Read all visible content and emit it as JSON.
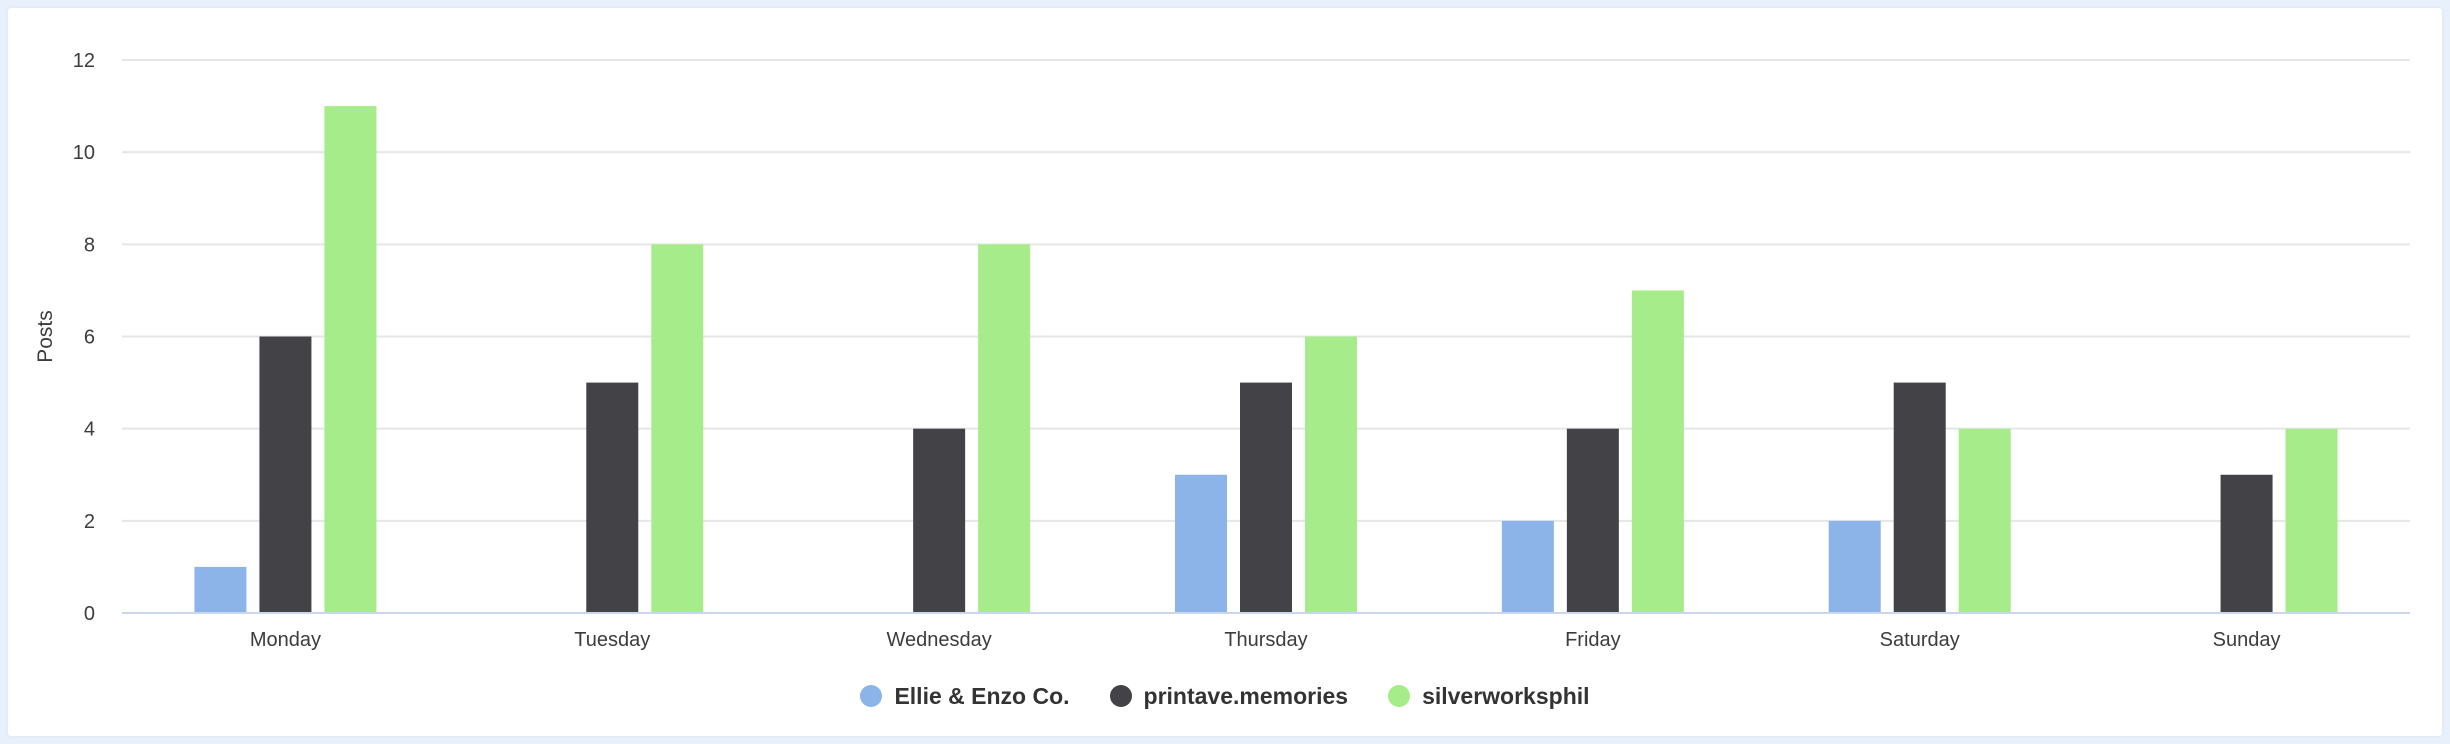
{
  "chart_data": {
    "type": "bar",
    "categories": [
      "Monday",
      "Tuesday",
      "Wednesday",
      "Thursday",
      "Friday",
      "Saturday",
      "Sunday"
    ],
    "series": [
      {
        "name": "Ellie & Enzo Co.",
        "color": "#8cb4e8",
        "values": [
          1,
          0,
          0,
          3,
          2,
          2,
          0
        ]
      },
      {
        "name": "printave.memories",
        "color": "#434347",
        "values": [
          6,
          5,
          4,
          5,
          4,
          5,
          3
        ]
      },
      {
        "name": "silverworksphil",
        "color": "#a6ec8a",
        "values": [
          11,
          8,
          8,
          6,
          7,
          4,
          4
        ]
      }
    ],
    "title": "",
    "xlabel": "",
    "ylabel": "Posts",
    "ylim": [
      0,
      12
    ],
    "yticks": [
      0,
      2,
      4,
      6,
      8,
      10,
      12
    ],
    "grid": true,
    "legend_position": "bottom-center"
  }
}
